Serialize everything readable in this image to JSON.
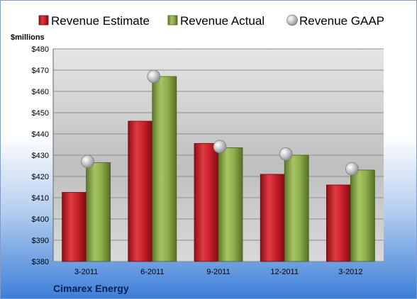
{
  "company": "Cimarex Energy",
  "chart_data": {
    "type": "bar",
    "ylabel": "$millions",
    "ylim": [
      380,
      480
    ],
    "yticks": [
      "$380",
      "$390",
      "$400",
      "$410",
      "$420",
      "$430",
      "$440",
      "$450",
      "$460",
      "$470",
      "$480"
    ],
    "categories": [
      "3-2011",
      "6-2011",
      "9-2011",
      "12-2011",
      "3-2012"
    ],
    "series": [
      {
        "name": "Revenue Estimate",
        "type": "bar",
        "color": "#c8202a",
        "values": [
          412.5,
          446,
          435.5,
          421,
          416
        ]
      },
      {
        "name": "Revenue Actual",
        "type": "bar",
        "color": "#8dac4a",
        "values": [
          426.5,
          467,
          433.5,
          430,
          423
        ]
      },
      {
        "name": "Revenue GAAP",
        "type": "scatter",
        "color": "#b8b8b8",
        "values": [
          427,
          467,
          434,
          430.5,
          423.5
        ]
      }
    ],
    "legend_position": "top",
    "grid": true
  }
}
